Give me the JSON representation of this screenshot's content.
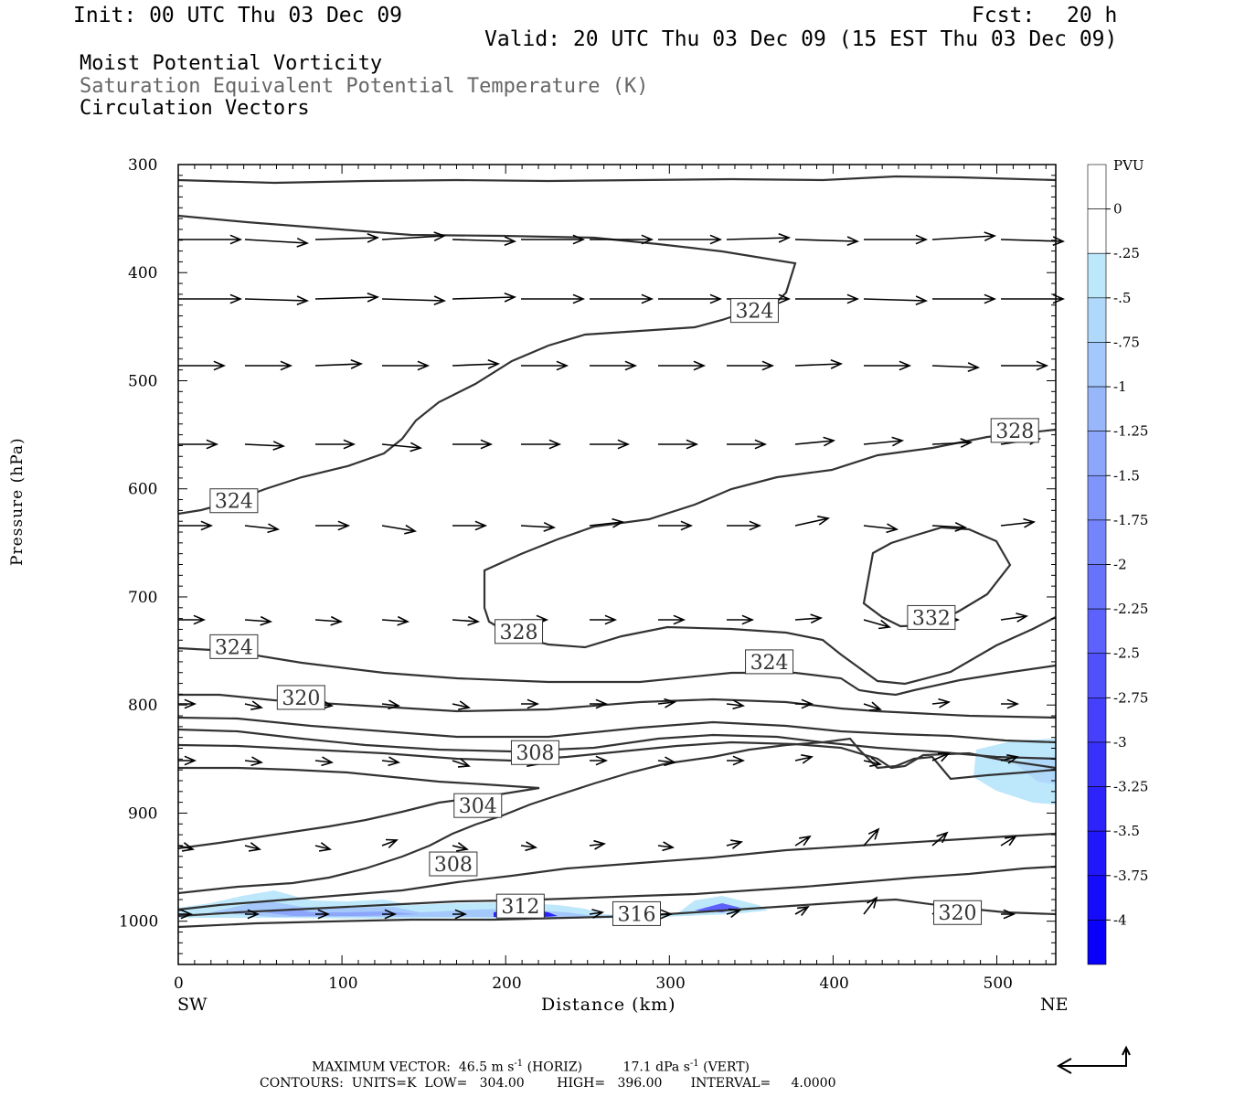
{
  "header": {
    "init": "Init: 00 UTC Thu 03 Dec 09",
    "fcst_label": "Fcst:",
    "fcst_value": "20 h",
    "valid": "Valid: 20 UTC Thu 03 Dec 09 (15 EST Thu 03 Dec 09)",
    "field1": "Moist Potential Vorticity",
    "field2": "Saturation Equivalent Potential Temperature (K)",
    "field3": "Circulation Vectors"
  },
  "chart_data": {
    "type": "contour",
    "xlabel": "Distance (km)",
    "ylabel": "Pressure (hPa)",
    "x_end_labels": [
      "SW",
      "NE"
    ],
    "xlim": [
      0,
      536
    ],
    "ylim": [
      1040,
      300
    ],
    "xticks": [
      0,
      100,
      200,
      300,
      400,
      500
    ],
    "yticks": [
      300,
      400,
      500,
      600,
      700,
      800,
      900,
      1000
    ],
    "contour_labels": [
      {
        "value": "324",
        "x": 352,
        "y": 435
      },
      {
        "value": "324",
        "x": 34,
        "y": 611
      },
      {
        "value": "328",
        "x": 511,
        "y": 546
      },
      {
        "value": "332",
        "x": 460,
        "y": 719
      },
      {
        "value": "328",
        "x": 208,
        "y": 732
      },
      {
        "value": "324",
        "x": 34,
        "y": 746
      },
      {
        "value": "324",
        "x": 361,
        "y": 760
      },
      {
        "value": "320",
        "x": 75,
        "y": 793
      },
      {
        "value": "308",
        "x": 218,
        "y": 844
      },
      {
        "value": "304",
        "x": 183,
        "y": 893
      },
      {
        "value": "308",
        "x": 168,
        "y": 947
      },
      {
        "value": "312",
        "x": 209,
        "y": 986
      },
      {
        "value": "316",
        "x": 280,
        "y": 993
      },
      {
        "value": "320",
        "x": 476,
        "y": 992
      }
    ],
    "colorbar": {
      "unit": "PVU",
      "labels": [
        "0",
        "-.25",
        "-.5",
        "-.75",
        "-1",
        "-1.25",
        "-1.5",
        "-1.75",
        "-2",
        "-2.25",
        "-2.5",
        "-2.75",
        "-3",
        "-3.25",
        "-3.5",
        "-3.75",
        "-4"
      ],
      "colors": [
        "#ffffff",
        "#ffffff",
        "#bde7fb",
        "#b0d8fb",
        "#a4c8fb",
        "#98b7fb",
        "#8ca6fb",
        "#8095fb",
        "#7484fb",
        "#6873fb",
        "#5c62fb",
        "#5051fb",
        "#4440fb",
        "#3830fb",
        "#2c24fb",
        "#2018fb",
        "#140cfb",
        "#0800fb"
      ]
    }
  },
  "footer": {
    "line1_a": "MAXIMUM VECTOR:  46.5 m s",
    "line1_b": "-1",
    "line1_c": " (HORIZ)",
    "line1_d": "17.1 dPa s",
    "line1_e": "-1",
    "line1_f": " (VERT)",
    "line2": "CONTOURS:  UNITS=K  LOW=   304.00        HIGH=   396.00       INTERVAL=     4.0000"
  }
}
